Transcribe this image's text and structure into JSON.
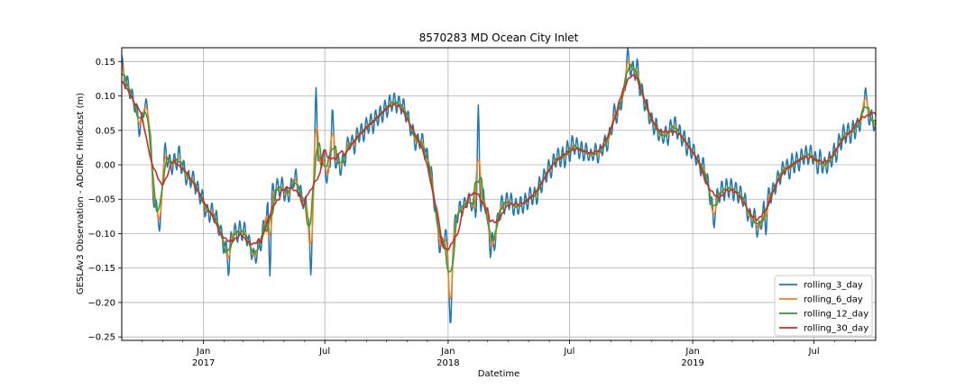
{
  "chart_data": {
    "type": "line",
    "title": "8570283 MD Ocean City Inlet",
    "xlabel": "Datetime",
    "ylabel": "GESLAv3 Observation - ADCIRC Hindcast (m)",
    "xlim": [
      "2016-09-01",
      "2019-10-01"
    ],
    "ylim": [
      -0.255,
      0.17
    ],
    "yticks": [
      -0.25,
      -0.2,
      -0.15,
      -0.1,
      -0.05,
      0.0,
      0.05,
      0.1,
      0.15
    ],
    "ytick_labels": [
      "−0.25",
      "−0.20",
      "−0.15",
      "−0.10",
      "−0.05",
      "0.00",
      "0.05",
      "0.10",
      "0.15"
    ],
    "xticks_major": [
      {
        "date": "2017-01-01",
        "label": "Jan",
        "sublabel": "2017"
      },
      {
        "date": "2017-07-01",
        "label": "Jul",
        "sublabel": ""
      },
      {
        "date": "2018-01-01",
        "label": "Jan",
        "sublabel": "2018"
      },
      {
        "date": "2018-07-01",
        "label": "Jul",
        "sublabel": ""
      },
      {
        "date": "2019-01-01",
        "label": "Jan",
        "sublabel": "2019"
      },
      {
        "date": "2019-07-01",
        "label": "Jul",
        "sublabel": ""
      }
    ],
    "grid": true,
    "legend_position": "lower-right",
    "series": [
      {
        "name": "rolling_3_day",
        "color": "#1f77b4",
        "window_days": 3
      },
      {
        "name": "rolling_6_day",
        "color": "#ff7f0e",
        "window_days": 6
      },
      {
        "name": "rolling_12_day",
        "color": "#2ca02c",
        "window_days": 12
      },
      {
        "name": "rolling_30_day",
        "color": "#d62728",
        "window_days": 30
      }
    ],
    "base_points": [
      [
        "2016-09-01",
        0.13
      ],
      [
        "2016-09-10",
        0.11
      ],
      [
        "2016-09-20",
        0.1
      ],
      [
        "2016-09-28",
        0.05
      ],
      [
        "2016-10-05",
        0.09
      ],
      [
        "2016-10-12",
        0.07
      ],
      [
        "2016-10-20",
        -0.06
      ],
      [
        "2016-10-28",
        -0.06
      ],
      [
        "2016-11-05",
        0.02
      ],
      [
        "2016-11-15",
        0.0
      ],
      [
        "2016-11-25",
        0.02
      ],
      [
        "2016-12-05",
        -0.02
      ],
      [
        "2016-12-15",
        -0.02
      ],
      [
        "2016-12-25",
        -0.04
      ],
      [
        "2017-01-05",
        -0.06
      ],
      [
        "2017-01-15",
        -0.07
      ],
      [
        "2017-01-25",
        -0.09
      ],
      [
        "2017-02-05",
        -0.12
      ],
      [
        "2017-02-15",
        -0.1
      ],
      [
        "2017-02-25",
        -0.09
      ],
      [
        "2017-03-08",
        -0.11
      ],
      [
        "2017-03-18",
        -0.13
      ],
      [
        "2017-03-28",
        -0.11
      ],
      [
        "2017-04-08",
        -0.05
      ],
      [
        "2017-04-18",
        -0.04
      ],
      [
        "2017-04-28",
        -0.03
      ],
      [
        "2017-05-08",
        -0.04
      ],
      [
        "2017-05-18",
        -0.02
      ],
      [
        "2017-05-28",
        -0.05
      ],
      [
        "2017-06-05",
        -0.06
      ],
      [
        "2017-06-12",
        -0.05
      ],
      [
        "2017-06-20",
        -0.01
      ],
      [
        "2017-06-28",
        0.02
      ],
      [
        "2017-07-06",
        -0.02
      ],
      [
        "2017-07-15",
        0.02
      ],
      [
        "2017-07-25",
        -0.01
      ],
      [
        "2017-08-05",
        0.03
      ],
      [
        "2017-08-15",
        0.03
      ],
      [
        "2017-08-25",
        0.04
      ],
      [
        "2017-09-05",
        0.05
      ],
      [
        "2017-09-15",
        0.06
      ],
      [
        "2017-09-25",
        0.07
      ],
      [
        "2017-10-05",
        0.08
      ],
      [
        "2017-10-15",
        0.09
      ],
      [
        "2017-10-25",
        0.08
      ],
      [
        "2017-11-05",
        0.06
      ],
      [
        "2017-11-15",
        0.04
      ],
      [
        "2017-11-25",
        0.03
      ],
      [
        "2017-12-05",
        0.0
      ],
      [
        "2017-12-15",
        -0.08
      ],
      [
        "2017-12-25",
        -0.1
      ],
      [
        "2018-01-02",
        -0.12
      ],
      [
        "2018-01-08",
        -0.1
      ],
      [
        "2018-01-15",
        -0.06
      ],
      [
        "2018-01-25",
        -0.06
      ],
      [
        "2018-02-05",
        -0.05
      ],
      [
        "2018-02-15",
        -0.07
      ],
      [
        "2018-02-22",
        -0.04
      ],
      [
        "2018-03-02",
        -0.08
      ],
      [
        "2018-03-10",
        -0.12
      ],
      [
        "2018-03-20",
        -0.06
      ],
      [
        "2018-04-01",
        -0.05
      ],
      [
        "2018-04-15",
        -0.06
      ],
      [
        "2018-05-01",
        -0.05
      ],
      [
        "2018-05-15",
        -0.04
      ],
      [
        "2018-06-01",
        0.0
      ],
      [
        "2018-06-15",
        0.01
      ],
      [
        "2018-07-01",
        0.02
      ],
      [
        "2018-07-15",
        0.03
      ],
      [
        "2018-08-01",
        0.01
      ],
      [
        "2018-08-15",
        0.02
      ],
      [
        "2018-09-01",
        0.05
      ],
      [
        "2018-09-15",
        0.09
      ],
      [
        "2018-09-28",
        0.14
      ],
      [
        "2018-10-08",
        0.14
      ],
      [
        "2018-10-20",
        0.1
      ],
      [
        "2018-11-01",
        0.06
      ],
      [
        "2018-11-15",
        0.04
      ],
      [
        "2018-12-01",
        0.05
      ],
      [
        "2018-12-15",
        0.04
      ],
      [
        "2019-01-01",
        0.02
      ],
      [
        "2019-01-15",
        0.0
      ],
      [
        "2019-02-01",
        -0.05
      ],
      [
        "2019-02-15",
        -0.04
      ],
      [
        "2019-03-01",
        -0.03
      ],
      [
        "2019-03-15",
        -0.05
      ],
      [
        "2019-04-01",
        -0.08
      ],
      [
        "2019-04-10",
        -0.1
      ],
      [
        "2019-04-20",
        -0.05
      ],
      [
        "2019-05-01",
        -0.04
      ],
      [
        "2019-05-15",
        -0.01
      ],
      [
        "2019-06-01",
        0.0
      ],
      [
        "2019-06-15",
        0.01
      ],
      [
        "2019-07-01",
        0.01
      ],
      [
        "2019-07-15",
        0.0
      ],
      [
        "2019-08-01",
        0.02
      ],
      [
        "2019-08-15",
        0.04
      ],
      [
        "2019-09-01",
        0.05
      ],
      [
        "2019-09-15",
        0.08
      ],
      [
        "2019-10-01",
        0.06
      ]
    ],
    "spikes": [
      [
        "2016-09-01",
        0.16
      ],
      [
        "2016-10-28",
        -0.105
      ],
      [
        "2017-02-08",
        -0.17
      ],
      [
        "2017-04-10",
        -0.19
      ],
      [
        "2017-06-10",
        -0.19
      ],
      [
        "2017-06-18",
        0.15
      ],
      [
        "2017-07-12",
        0.1
      ],
      [
        "2017-12-20",
        -0.135
      ],
      [
        "2018-01-05",
        -0.235
      ],
      [
        "2018-01-03",
        -0.205
      ],
      [
        "2018-02-15",
        0.13
      ],
      [
        "2018-03-05",
        -0.15
      ],
      [
        "2018-09-25",
        0.17
      ],
      [
        "2018-10-10",
        0.16
      ],
      [
        "2019-02-01",
        -0.1
      ],
      [
        "2019-04-20",
        -0.115
      ],
      [
        "2019-09-15",
        0.12
      ]
    ]
  }
}
